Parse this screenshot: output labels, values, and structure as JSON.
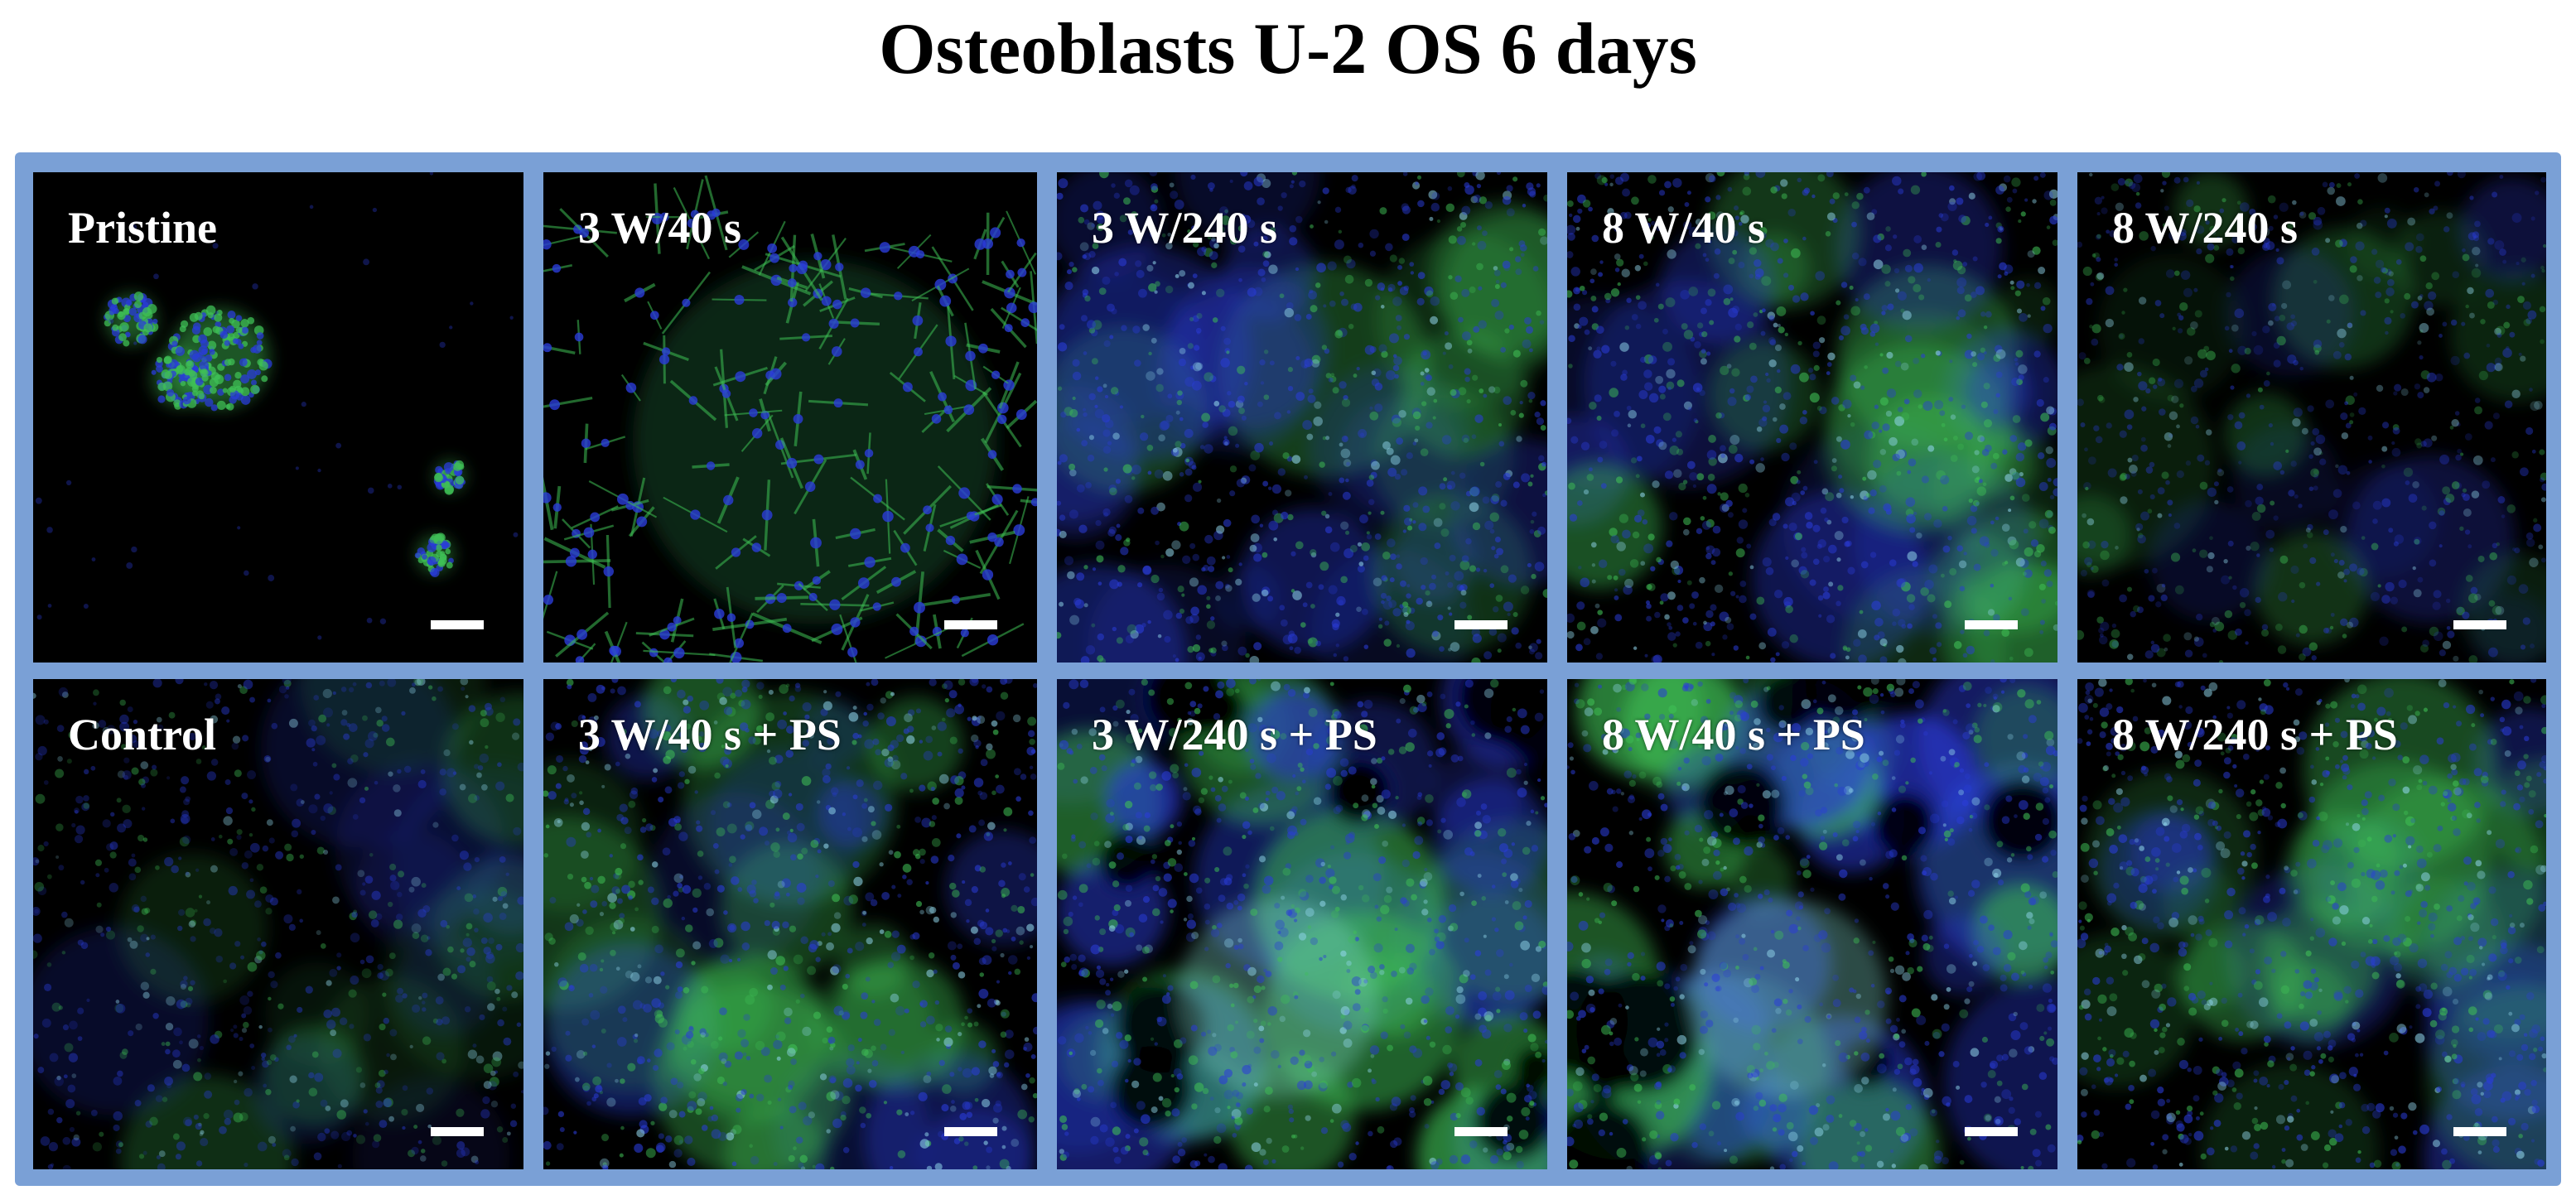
{
  "figure": {
    "title": "Osteoblasts U-2 OS 6 days"
  },
  "colors": {
    "frame": "#7aa0d6",
    "nuclei": "#2a3cd8",
    "actin": "#3fbf55",
    "background": "#000000",
    "label": "#ffffff"
  },
  "panels": [
    {
      "label": "Pristine",
      "row": 1,
      "col": 1,
      "texture": "sparse-clusters"
    },
    {
      "label": "3 W/40 s",
      "row": 1,
      "col": 2,
      "texture": "elongated-green"
    },
    {
      "label": "3 W/240 s",
      "row": 1,
      "col": 3,
      "texture": "dense-confluent"
    },
    {
      "label": "8 W/40 s",
      "row": 1,
      "col": 4,
      "texture": "dense-confluent"
    },
    {
      "label": "8 W/240 s",
      "row": 1,
      "col": 5,
      "texture": "dense-dim"
    },
    {
      "label": "Control",
      "row": 2,
      "col": 1,
      "texture": "dense-dim"
    },
    {
      "label": "3 W/40 s + PS",
      "row": 2,
      "col": 2,
      "texture": "dense-confluent"
    },
    {
      "label": "3 W/240 s + PS",
      "row": 2,
      "col": 3,
      "texture": "patchy-bright"
    },
    {
      "label": "8 W/40 s + PS",
      "row": 2,
      "col": 4,
      "texture": "patchy-bright"
    },
    {
      "label": "8 W/240 s + PS",
      "row": 2,
      "col": 5,
      "texture": "dense-confluent"
    }
  ]
}
